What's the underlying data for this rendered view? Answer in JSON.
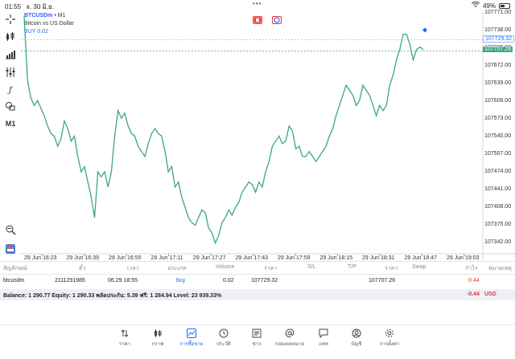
{
  "status": {
    "time": "01:55",
    "date": "จ. 30 มิ.ย.",
    "battery": "49%",
    "battery_level": 0.49,
    "dots": "•••"
  },
  "symbol": {
    "name": "BTCUSDm",
    "timeframe": "• M1",
    "description": "Bitcoin vs US Dollar",
    "buy_label": "BUY 0.02"
  },
  "toolbar": {
    "timeframe_label": "M1"
  },
  "chart_data": {
    "type": "line",
    "color": "#3aa87a",
    "ylim": [
      107309,
      107782
    ],
    "y_ticks": [
      "107771.00",
      "107738.00",
      "107705.00",
      "107672.00",
      "107639.00",
      "107606.00",
      "107573.00",
      "107540.00",
      "107507.00",
      "107474.00",
      "107441.00",
      "107408.00",
      "107375.00",
      "107342.00"
    ],
    "x_ticks": [
      "29 Jun 16:23",
      "29 Jun 16:39",
      "29 Jun 16:55",
      "29 Jun 17:11",
      "29 Jun 17:27",
      "29 Jun 17:43",
      "29 Jun 17:59",
      "29 Jun 18:15",
      "29 Jun 18:31",
      "29 Jun 18:47",
      "29 Jun 19:03"
    ],
    "x_range": [
      0,
      160
    ],
    "buy_price": "107729.32",
    "current_price": "107707.26",
    "buy_value": 107729.32,
    "current_value": 107707.26,
    "values": [
      107775,
      107650,
      107615,
      107600,
      107610,
      107595,
      107580,
      107560,
      107545,
      107540,
      107520,
      107535,
      107570,
      107555,
      107530,
      107540,
      107500,
      107470,
      107480,
      107450,
      107420,
      107380,
      107470,
      107460,
      107470,
      107440,
      107470,
      107540,
      107590,
      107575,
      107585,
      107560,
      107545,
      107540,
      107520,
      107510,
      107500,
      107525,
      107545,
      107555,
      107545,
      107540,
      107510,
      107470,
      107480,
      107440,
      107450,
      107420,
      107400,
      107380,
      107370,
      107365,
      107380,
      107395,
      107390,
      107360,
      107350,
      107330,
      107345,
      107370,
      107380,
      107395,
      107385,
      107400,
      107410,
      107430,
      107440,
      107450,
      107445,
      107430,
      107450,
      107440,
      107470,
      107490,
      107520,
      107530,
      107540,
      107525,
      107530,
      107560,
      107550,
      107515,
      107520,
      107500,
      107500,
      107510,
      107500,
      107490,
      107500,
      107510,
      107520,
      107540,
      107555,
      107580,
      107600,
      107620,
      107640,
      107630,
      107620,
      107600,
      107610,
      107640,
      107630,
      107620,
      107600,
      107580,
      107600,
      107590,
      107600,
      107640,
      107660,
      107690,
      107710,
      107740,
      107740,
      107720,
      107690,
      107710,
      107715,
      107710
    ]
  },
  "table": {
    "headers": [
      "สัญลักษณ์",
      "ตั๋ว",
      "เวลา",
      "ประเภท",
      "Volume",
      "ราคา",
      "S/L",
      "T/P",
      "ราคา",
      "Swap",
      "กำไร",
      "หมายเหตุ"
    ],
    "row": {
      "symbol": "btcusdm",
      "ticket": "2111291985",
      "time": "06.29 18:55",
      "type": "buy",
      "volume": "0.02",
      "price": "107729.32",
      "sl": "",
      "tp": "",
      "current": "107707.26",
      "swap": "",
      "profit": "-0.44",
      "comment": ""
    },
    "balance": "Balance: 1 290.77 Equity: 1 290.33 พลัดประกัน: 5.39 ฟรี: 1 284.94 Level: 23 939.33%",
    "total_profit": "-0.44",
    "currency": "USD"
  },
  "nav": {
    "items": [
      {
        "label": "ราคา",
        "icon": "arrows-updown-icon"
      },
      {
        "label": "กราฟ",
        "icon": "candles-icon"
      },
      {
        "label": "การซื้อขาย",
        "icon": "trade-chart-icon"
      },
      {
        "label": "ประวัติ",
        "icon": "history-icon"
      },
      {
        "label": "ข่าว",
        "icon": "news-icon"
      },
      {
        "label": "กล่องจดหมาย",
        "icon": "mail-at-icon"
      },
      {
        "label": "แชท",
        "icon": "chat-icon"
      },
      {
        "label": "บัญชี",
        "icon": "account-icon"
      },
      {
        "label": "การตั้งค่า",
        "icon": "gear-icon"
      }
    ]
  },
  "colors": {
    "accent": "#1a66ff",
    "line": "#3aa87a",
    "loss": "#e53935",
    "balance_bg": "#eef0f6"
  }
}
